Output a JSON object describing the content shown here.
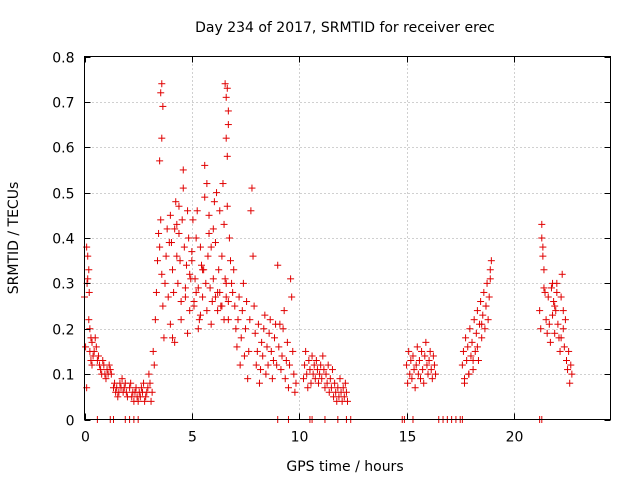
{
  "chart_data": {
    "type": "scatter",
    "title": "Day 234 of 2017, SRMTID for receiver erec",
    "xlabel": "GPS time / hours",
    "ylabel": "SRMTID / TECUs",
    "xlim": [
      0,
      24.5
    ],
    "ylim": [
      0,
      0.8
    ],
    "x_ticks": [
      0,
      5,
      10,
      15,
      20
    ],
    "y_ticks": [
      0,
      0.1,
      0.2,
      0.3,
      0.4,
      0.5,
      0.6,
      0.7,
      0.8
    ],
    "x_tick_labels": [
      "0",
      "5",
      "10",
      "15",
      "20"
    ],
    "y_tick_labels": [
      "0",
      "0.1",
      "0.2",
      "0.3",
      "0.4",
      "0.5",
      "0.6",
      "0.7",
      "0.8"
    ],
    "grid": true,
    "marker": "+",
    "marker_color": "#e00000",
    "series": [
      {
        "name": "SRMTID",
        "x": [
          0.0,
          0.05,
          0.1,
          0.15,
          0.2,
          0.25,
          0.3,
          0.35,
          0.4,
          0.45,
          0.5,
          0.55,
          0.6,
          0.65,
          0.7,
          0.75,
          0.8,
          0.85,
          0.9,
          0.95,
          1.0,
          1.05,
          1.1,
          1.15,
          1.2,
          1.25,
          0.1,
          0.15,
          0.2,
          0.25,
          0.3,
          0.12,
          0.22,
          0.35,
          1.35,
          1.4,
          1.45,
          1.5,
          1.55,
          1.6,
          1.65,
          1.7,
          1.75,
          1.8,
          1.85,
          1.9,
          1.95,
          2.0,
          2.1,
          2.15,
          2.2,
          2.25,
          2.3,
          2.35,
          2.4,
          2.45,
          2.5,
          2.55,
          2.6,
          2.65,
          2.7,
          2.75,
          2.8,
          2.85,
          2.9,
          2.95,
          3.0,
          3.05,
          3.1,
          3.15,
          3.2,
          3.25,
          3.3,
          3.35,
          3.4,
          3.45,
          3.5,
          3.55,
          3.6,
          3.65,
          3.7,
          3.75,
          3.8,
          3.85,
          3.9,
          3.95,
          3.5,
          3.6,
          3.55,
          3.6,
          3.65,
          4.0,
          4.05,
          4.1,
          4.15,
          4.2,
          4.25,
          4.3,
          4.35,
          4.4,
          4.45,
          4.5,
          4.55,
          4.6,
          4.65,
          4.7,
          4.75,
          4.8,
          4.85,
          4.9,
          4.95,
          4.0,
          4.1,
          4.2,
          4.3,
          4.4,
          4.5,
          4.6,
          4.7,
          4.8,
          4.9,
          5.0,
          5.1,
          5.2,
          5.3,
          5.4,
          5.5,
          5.0,
          5.05,
          5.1,
          5.15,
          5.2,
          5.25,
          5.3,
          5.35,
          5.4,
          5.45,
          5.5,
          5.55,
          5.6,
          5.65,
          5.7,
          5.75,
          5.8,
          5.85,
          5.9,
          5.95,
          5.6,
          5.7,
          5.8,
          5.9,
          6.0,
          6.1,
          6.2,
          6.3,
          6.4,
          6.5,
          6.6,
          6.7,
          6.0,
          6.05,
          6.1,
          6.15,
          6.2,
          6.25,
          6.3,
          6.35,
          6.4,
          6.45,
          6.5,
          6.55,
          6.6,
          6.65,
          6.7,
          6.75,
          6.8,
          6.85,
          6.55,
          6.6,
          6.65,
          6.7,
          6.6,
          6.65,
          6.7,
          6.9,
          6.95,
          7.0,
          7.05,
          7.1,
          7.15,
          7.2,
          7.25,
          7.3,
          7.35,
          7.4,
          7.45,
          7.5,
          7.55,
          7.6,
          7.65,
          7.7,
          7.75,
          7.8,
          7.85,
          7.9,
          7.95,
          8.0,
          8.05,
          8.1,
          8.15,
          8.2,
          8.25,
          8.3,
          8.35,
          8.4,
          8.45,
          8.5,
          8.55,
          8.6,
          8.65,
          8.7,
          8.75,
          8.8,
          8.85,
          8.9,
          8.95,
          9.0,
          9.05,
          9.1,
          9.15,
          9.2,
          9.25,
          9.3,
          9.35,
          9.4,
          9.45,
          9.5,
          9.55,
          9.6,
          9.65,
          9.7,
          9.75,
          9.8,
          9.85,
          10.2,
          10.25,
          10.3,
          10.35,
          10.4,
          10.45,
          10.5,
          10.55,
          10.6,
          10.65,
          10.7,
          10.75,
          10.8,
          10.85,
          10.9,
          10.95,
          11.0,
          11.05,
          11.1,
          11.15,
          11.2,
          11.25,
          11.3,
          11.35,
          11.4,
          11.45,
          11.5,
          11.55,
          11.6,
          11.65,
          11.7,
          11.75,
          11.8,
          11.85,
          11.9,
          11.95,
          12.0,
          12.05,
          12.1,
          12.15,
          12.2,
          12.25,
          15.0,
          15.05,
          15.1,
          15.15,
          15.2,
          15.25,
          15.3,
          15.35,
          15.4,
          15.45,
          15.5,
          15.55,
          15.6,
          15.65,
          15.7,
          15.75,
          15.8,
          15.85,
          15.9,
          15.95,
          16.0,
          16.05,
          16.1,
          16.15,
          16.2,
          16.25,
          16.3,
          16.35,
          17.6,
          17.65,
          17.7,
          17.75,
          17.8,
          17.85,
          17.9,
          17.95,
          18.0,
          18.05,
          18.1,
          18.15,
          18.2,
          18.25,
          18.3,
          18.35,
          18.4,
          18.45,
          18.5,
          18.55,
          18.6,
          18.65,
          18.7,
          18.75,
          18.8,
          18.85,
          18.9,
          18.95,
          17.7,
          17.9,
          18.1,
          18.3,
          18.5,
          18.7,
          18.9,
          21.2,
          21.25,
          21.3,
          21.35,
          21.4,
          21.45,
          21.5,
          21.55,
          21.6,
          21.65,
          21.7,
          21.75,
          21.8,
          21.85,
          21.9,
          21.95,
          22.0,
          22.05,
          22.1,
          22.15,
          22.2,
          22.25,
          22.3,
          22.35,
          22.4,
          22.45,
          22.5,
          22.55,
          22.6,
          22.65,
          22.7,
          21.3,
          21.35,
          21.4,
          21.8,
          21.9,
          22.0,
          22.2,
          22.3,
          0.6,
          1.2,
          1.35,
          1.9,
          2.1,
          2.3,
          2.5,
          9.0,
          9.5,
          10.5,
          10.6,
          11.2,
          11.8,
          12.2,
          12.4,
          14.8,
          14.9,
          15.3,
          16.5,
          16.7,
          16.9,
          17.1,
          17.3,
          17.5,
          17.6,
          21.2,
          21.3
        ],
        "y": [
          0.27,
          0.16,
          0.38,
          0.31,
          0.22,
          0.15,
          0.13,
          0.12,
          0.14,
          0.15,
          0.18,
          0.16,
          0.13,
          0.14,
          0.12,
          0.11,
          0.1,
          0.13,
          0.12,
          0.1,
          0.09,
          0.11,
          0.1,
          0.12,
          0.11,
          0.1,
          0.07,
          0.36,
          0.33,
          0.2,
          0.18,
          0.3,
          0.28,
          0.17,
          0.07,
          0.08,
          0.06,
          0.07,
          0.05,
          0.06,
          0.08,
          0.07,
          0.09,
          0.06,
          0.07,
          0.08,
          0.06,
          0.05,
          0.07,
          0.08,
          0.05,
          0.06,
          0.04,
          0.06,
          0.07,
          0.05,
          0.04,
          0.06,
          0.05,
          0.07,
          0.06,
          0.08,
          0.04,
          0.05,
          0.06,
          0.07,
          0.1,
          0.08,
          0.04,
          0.06,
          0.15,
          0.12,
          0.22,
          0.28,
          0.35,
          0.41,
          0.38,
          0.44,
          0.32,
          0.25,
          0.18,
          0.3,
          0.36,
          0.42,
          0.27,
          0.39,
          0.57,
          0.62,
          0.72,
          0.74,
          0.69,
          0.45,
          0.39,
          0.33,
          0.28,
          0.42,
          0.48,
          0.36,
          0.3,
          0.41,
          0.35,
          0.26,
          0.44,
          0.51,
          0.38,
          0.29,
          0.34,
          0.46,
          0.4,
          0.24,
          0.31,
          0.21,
          0.18,
          0.17,
          0.43,
          0.47,
          0.22,
          0.55,
          0.27,
          0.19,
          0.32,
          0.37,
          0.25,
          0.28,
          0.2,
          0.23,
          0.33,
          0.35,
          0.44,
          0.26,
          0.31,
          0.4,
          0.46,
          0.29,
          0.22,
          0.38,
          0.34,
          0.27,
          0.33,
          0.49,
          0.3,
          0.24,
          0.36,
          0.41,
          0.29,
          0.21,
          0.26,
          0.56,
          0.52,
          0.45,
          0.38,
          0.31,
          0.27,
          0.24,
          0.28,
          0.25,
          0.22,
          0.3,
          0.26,
          0.42,
          0.48,
          0.39,
          0.5,
          0.28,
          0.33,
          0.46,
          0.25,
          0.36,
          0.52,
          0.43,
          0.31,
          0.27,
          0.47,
          0.22,
          0.4,
          0.35,
          0.3,
          0.74,
          0.71,
          0.73,
          0.68,
          0.62,
          0.58,
          0.65,
          0.28,
          0.33,
          0.25,
          0.2,
          0.16,
          0.22,
          0.27,
          0.12,
          0.18,
          0.24,
          0.3,
          0.14,
          0.2,
          0.26,
          0.09,
          0.15,
          0.22,
          0.46,
          0.51,
          0.36,
          0.25,
          0.19,
          0.12,
          0.15,
          0.21,
          0.08,
          0.11,
          0.17,
          0.14,
          0.2,
          0.23,
          0.1,
          0.16,
          0.12,
          0.19,
          0.22,
          0.15,
          0.09,
          0.13,
          0.18,
          0.21,
          0.12,
          0.34,
          0.16,
          0.21,
          0.11,
          0.14,
          0.2,
          0.24,
          0.09,
          0.13,
          0.17,
          0.07,
          0.12,
          0.31,
          0.27,
          0.15,
          0.1,
          0.06,
          0.08,
          0.09,
          0.12,
          0.15,
          0.1,
          0.07,
          0.13,
          0.11,
          0.08,
          0.14,
          0.1,
          0.12,
          0.09,
          0.13,
          0.11,
          0.08,
          0.1,
          0.12,
          0.09,
          0.14,
          0.11,
          0.07,
          0.1,
          0.08,
          0.12,
          0.06,
          0.09,
          0.07,
          0.11,
          0.05,
          0.08,
          0.06,
          0.04,
          0.07,
          0.05,
          0.09,
          0.06,
          0.04,
          0.07,
          0.05,
          0.08,
          0.06,
          0.04,
          0.12,
          0.08,
          0.15,
          0.1,
          0.13,
          0.09,
          0.14,
          0.11,
          0.07,
          0.12,
          0.16,
          0.1,
          0.13,
          0.09,
          0.15,
          0.11,
          0.08,
          0.14,
          0.17,
          0.12,
          0.1,
          0.13,
          0.15,
          0.11,
          0.09,
          0.14,
          0.12,
          0.1,
          0.12,
          0.15,
          0.09,
          0.18,
          0.13,
          0.16,
          0.1,
          0.2,
          0.14,
          0.17,
          0.11,
          0.22,
          0.15,
          0.19,
          0.24,
          0.13,
          0.21,
          0.26,
          0.18,
          0.23,
          0.28,
          0.2,
          0.25,
          0.3,
          0.22,
          0.27,
          0.33,
          0.35,
          0.08,
          0.1,
          0.13,
          0.16,
          0.21,
          0.25,
          0.31,
          0.24,
          0.2,
          0.43,
          0.38,
          0.33,
          0.28,
          0.22,
          0.19,
          0.27,
          0.21,
          0.17,
          0.29,
          0.23,
          0.26,
          0.19,
          0.24,
          0.3,
          0.21,
          0.18,
          0.15,
          0.27,
          0.32,
          0.2,
          0.16,
          0.22,
          0.13,
          0.11,
          0.15,
          0.08,
          0.12,
          0.1,
          0.4,
          0.36,
          0.29,
          0.3,
          0.25,
          0.28,
          0.18,
          0.24,
          0.0,
          0.0,
          0.0,
          0.0,
          0.0,
          0.0,
          0.0,
          0.0,
          0.0,
          0.0,
          0.0,
          0.0,
          0.0,
          0.0,
          0.0,
          0.0,
          0.0,
          0.0,
          0.0,
          0.0,
          0.0,
          0.0,
          0.0,
          0.0,
          0.0,
          0.0,
          0.0
        ]
      }
    ]
  }
}
